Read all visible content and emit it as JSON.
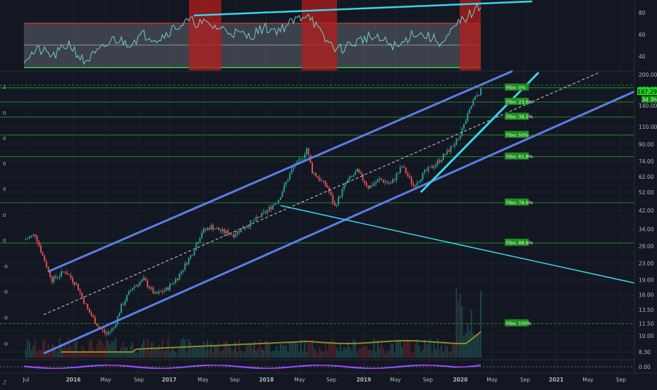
{
  "colors": {
    "background": "#131722",
    "grid": "#1e2230",
    "candle_up": "#26a69a",
    "candle_down": "#ef5350",
    "channel": "#5b7ee5",
    "trendline": "#3ad5e8",
    "fibo_line": "#1e8a2a",
    "fibo_label_bg": "#1f8f1f",
    "rsi_line": "#6fcfcf",
    "rsi_band": "#8a8f99",
    "rsi_overbought": "#b51d1d",
    "volume_ma": "#8c8a2a",
    "price_tag": "#19d619",
    "macd": "#2962ff",
    "signal": "#e040fb"
  },
  "x_axis": {
    "labels": [
      "Jul",
      "2016",
      "May",
      "Sep",
      "2017",
      "May",
      "Sep",
      "2018",
      "May",
      "Sep",
      "2019",
      "May",
      "Sep",
      "2020",
      "May",
      "Sep",
      "2021",
      "May",
      "Sep"
    ]
  },
  "rsi_axis": {
    "ticks": [
      "80",
      "60",
      "40"
    ]
  },
  "macd_axis": {
    "ticks": [
      "0.00"
    ]
  },
  "left_axis": {
    "ticks": [
      "1",
      "0",
      "0",
      "0",
      "0",
      "0",
      "0",
      "-0",
      "-0",
      "-0",
      "-0",
      "-0",
      "-1"
    ]
  },
  "price_tag": {
    "value": "167.29",
    "countdown": "3d 3h"
  },
  "chart_data": {
    "type": "candlestick",
    "scale": "log",
    "y_axis_ticks": [
      200.0,
      170.0,
      140.0,
      110.0,
      90.0,
      74.0,
      62.0,
      52.0,
      42.0,
      34.0,
      28.0,
      23.0,
      19.0,
      16.0,
      13.5,
      11.5,
      10.0,
      8.3
    ],
    "fibonacci": [
      {
        "label": "Fibo:  0%",
        "price": 172
      },
      {
        "label": "Fibo: 23.6%",
        "price": 146
      },
      {
        "label": "Fibo: 38.2%",
        "price": 123
      },
      {
        "label": "Fibo:  50%",
        "price": 100
      },
      {
        "label": "Fibo: 61.8%",
        "price": 78
      },
      {
        "label": "Fibo: 78.6%",
        "price": 46
      },
      {
        "label": "Fibo: 88.6%",
        "price": 29
      },
      {
        "label": "Fibo: 100%",
        "price": 11.5
      }
    ],
    "price_path": [
      [
        0,
        30
      ],
      [
        6,
        32
      ],
      [
        10,
        25
      ],
      [
        15,
        19
      ],
      [
        22,
        21
      ],
      [
        28,
        18
      ],
      [
        34,
        13.5
      ],
      [
        40,
        11
      ],
      [
        44,
        10.2
      ],
      [
        48,
        11
      ],
      [
        52,
        14
      ],
      [
        58,
        17.5
      ],
      [
        64,
        19
      ],
      [
        70,
        16
      ],
      [
        76,
        17
      ],
      [
        82,
        19.5
      ],
      [
        90,
        26
      ],
      [
        95,
        33
      ],
      [
        100,
        35
      ],
      [
        106,
        33
      ],
      [
        112,
        32
      ],
      [
        118,
        35
      ],
      [
        124,
        38
      ],
      [
        130,
        42
      ],
      [
        136,
        48
      ],
      [
        140,
        58
      ],
      [
        144,
        70
      ],
      [
        148,
        75
      ],
      [
        151,
        86
      ],
      [
        154,
        66
      ],
      [
        158,
        60
      ],
      [
        162,
        55
      ],
      [
        166,
        44
      ],
      [
        172,
        58
      ],
      [
        178,
        66
      ],
      [
        184,
        55
      ],
      [
        190,
        60
      ],
      [
        196,
        57
      ],
      [
        202,
        70
      ],
      [
        208,
        56
      ],
      [
        214,
        65
      ],
      [
        220,
        72
      ],
      [
        226,
        82
      ],
      [
        232,
        96
      ],
      [
        236,
        118
      ],
      [
        240,
        148
      ],
      [
        244,
        167
      ]
    ],
    "rsi_path": [
      [
        0,
        38
      ],
      [
        8,
        46
      ],
      [
        16,
        40
      ],
      [
        24,
        52
      ],
      [
        32,
        35
      ],
      [
        40,
        44
      ],
      [
        48,
        56
      ],
      [
        56,
        52
      ],
      [
        64,
        60
      ],
      [
        72,
        56
      ],
      [
        80,
        66
      ],
      [
        88,
        72
      ],
      [
        96,
        70
      ],
      [
        104,
        66
      ],
      [
        112,
        62
      ],
      [
        120,
        58
      ],
      [
        128,
        66
      ],
      [
        136,
        64
      ],
      [
        144,
        72
      ],
      [
        152,
        80
      ],
      [
        160,
        56
      ],
      [
        168,
        46
      ],
      [
        176,
        52
      ],
      [
        184,
        58
      ],
      [
        192,
        54
      ],
      [
        200,
        48
      ],
      [
        208,
        62
      ],
      [
        216,
        58
      ],
      [
        224,
        52
      ],
      [
        232,
        70
      ],
      [
        238,
        78
      ],
      [
        244,
        86
      ]
    ]
  }
}
